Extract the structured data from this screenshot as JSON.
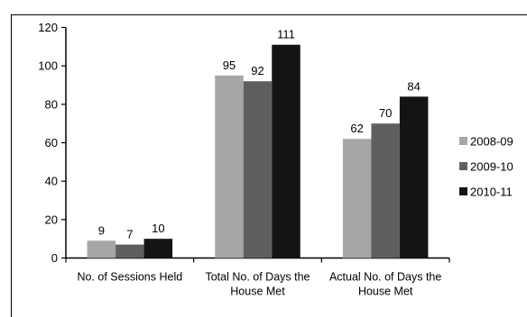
{
  "chart_data": {
    "type": "bar",
    "title": "",
    "xlabel": "",
    "ylabel": "",
    "ylim": [
      0,
      120
    ],
    "yticks": [
      "0",
      "20",
      "40",
      "60",
      "80",
      "100",
      "120"
    ],
    "categories": [
      [
        "No. of Sessions Held"
      ],
      [
        "Total No. of Days the",
        "House Met"
      ],
      [
        "Actual No. of Days the",
        "House Met"
      ]
    ],
    "series": [
      {
        "name": "2008-09",
        "values": [
          9,
          95,
          62
        ],
        "color": "#a6a6a6"
      },
      {
        "name": "2009-10",
        "values": [
          7,
          92,
          70
        ],
        "color": "#5f5f5f"
      },
      {
        "name": "2010-11",
        "values": [
          10,
          111,
          84
        ],
        "color": "#141414"
      }
    ],
    "grid": false,
    "legend": "right"
  }
}
